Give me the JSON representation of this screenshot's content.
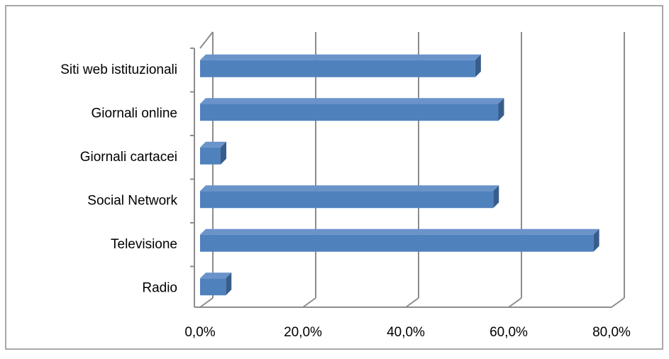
{
  "chart_data": {
    "type": "bar",
    "orientation": "horizontal",
    "style": "3d",
    "categories": [
      "Radio",
      "Televisione",
      "Social Network",
      "Giornali cartacei",
      "Giornali online",
      "Siti web istituzionali"
    ],
    "values": [
      5.0,
      76.5,
      57.0,
      4.0,
      58.0,
      53.5
    ],
    "x_ticks": [
      "0,0%",
      "20,0%",
      "40,0%",
      "60,0%",
      "80,0%"
    ],
    "xlim": [
      0,
      80
    ],
    "grid": true,
    "legend": "none",
    "colors": {
      "bar_front": "#4F81BD",
      "bar_top": "#6A93CA",
      "bar_side": "#385D8A",
      "gridline": "#8C8C8C",
      "frame": "#8C8C8C"
    }
  }
}
